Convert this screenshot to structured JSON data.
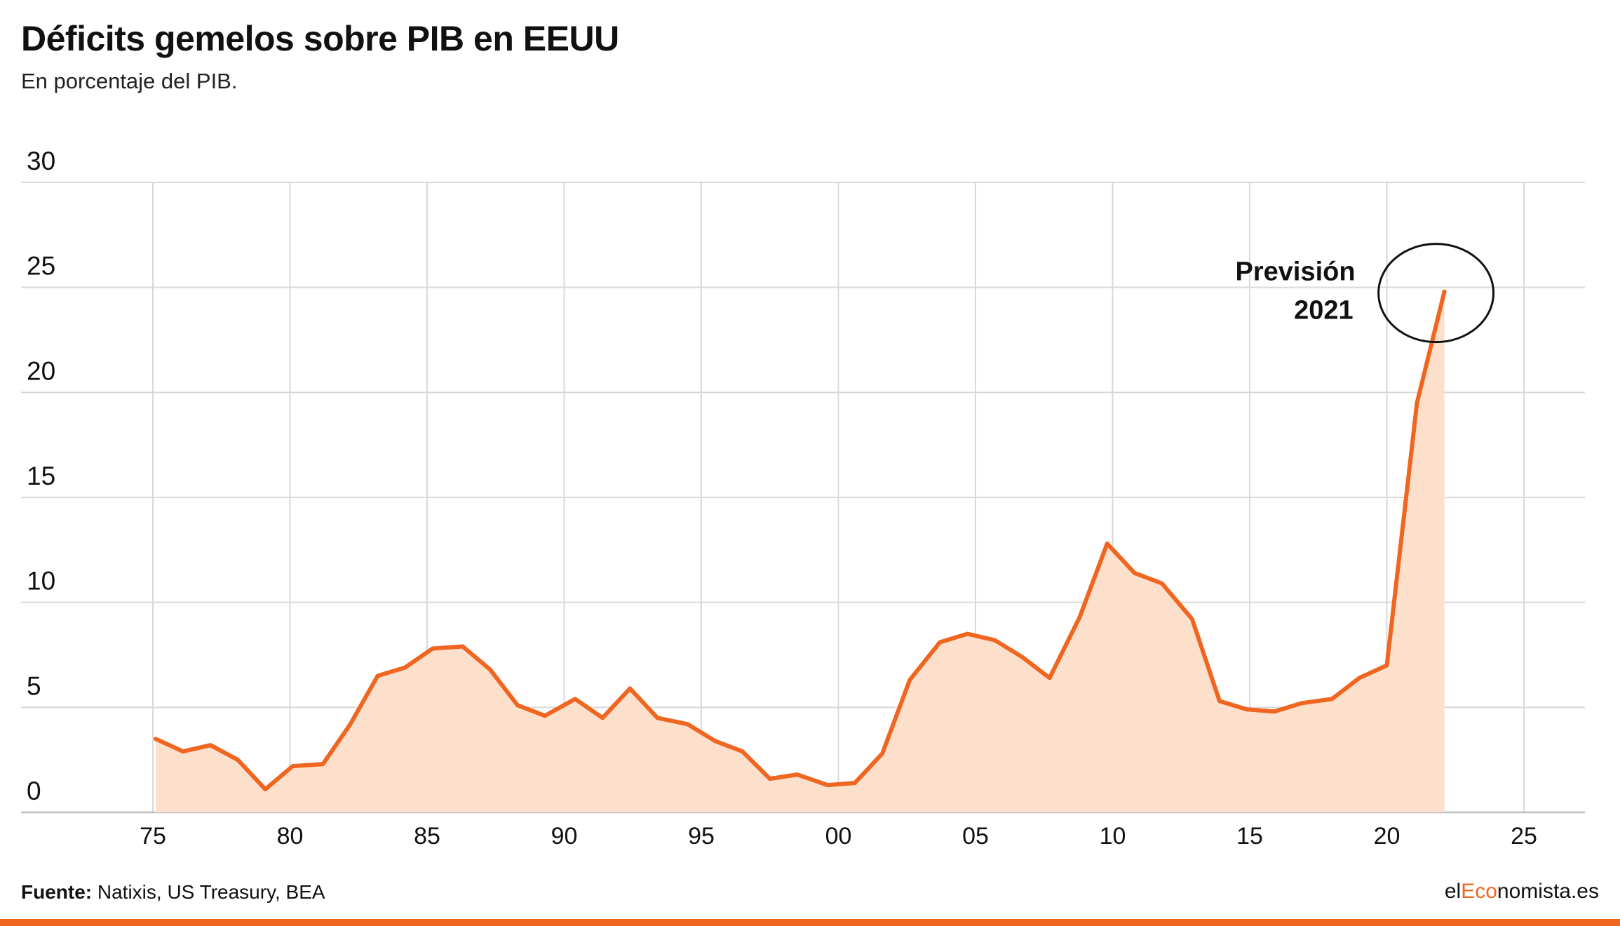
{
  "header": {
    "title": "Déficits gemelos sobre PIB en EEUU",
    "subtitle": "En porcentaje del PIB."
  },
  "footer": {
    "source_label": "Fuente:",
    "source_text": "Natixis, US Treasury, BEA",
    "brand_prefix": "el",
    "brand_accent": "Eco",
    "brand_suffix": "nomista.es"
  },
  "colors": {
    "line": "#f0651f",
    "area": "#fde0cc",
    "grid": "#d9d9d9",
    "accent": "#f0651f"
  },
  "chart_data": {
    "type": "area",
    "ylim": [
      0,
      30
    ],
    "xlim": [
      1975,
      2025
    ],
    "yticks": [
      0,
      5,
      10,
      15,
      20,
      25,
      30
    ],
    "ytick_labels": [
      "0",
      "5",
      "10",
      "15",
      "20",
      "25",
      "30"
    ],
    "xticks": [
      1975,
      1980,
      1985,
      1990,
      1995,
      2000,
      2005,
      2010,
      2015,
      2020,
      2025
    ],
    "xtick_labels": [
      "75",
      "80",
      "85",
      "90",
      "95",
      "00",
      "05",
      "10",
      "15",
      "20",
      "25"
    ],
    "grid": true,
    "series": [
      {
        "x": [
          1975.1,
          1976.1,
          1977.1,
          1978.1,
          1979.1,
          1980.1,
          1981.2,
          1982.2,
          1983.2,
          1984.2,
          1985.2,
          1986.3,
          1987.3,
          1988.3,
          1989.3,
          1990.4,
          1991.4,
          1992.4,
          1993.4,
          1994.5,
          1995.5,
          1996.5,
          1997.5,
          1998.5,
          1999.6,
          2000.6,
          2001.6,
          2002.6,
          2003.7,
          2004.7,
          2005.7,
          2006.7,
          2007.7,
          2008.8,
          2009.8,
          2010.8,
          2011.8,
          2012.9,
          2013.9,
          2014.9,
          2015.9,
          2016.9,
          2018.0,
          2019.0,
          2020.0,
          2021.1,
          2022.1
        ],
        "y": [
          3.5,
          2.9,
          3.2,
          2.5,
          1.1,
          2.2,
          2.3,
          4.2,
          6.5,
          6.9,
          7.8,
          7.9,
          6.8,
          5.1,
          4.6,
          5.4,
          4.5,
          5.9,
          4.5,
          4.2,
          3.4,
          2.9,
          1.6,
          1.8,
          1.3,
          1.4,
          2.8,
          6.3,
          8.1,
          8.5,
          8.2,
          7.4,
          6.4,
          9.3,
          12.8,
          11.4,
          10.9,
          9.2,
          5.3,
          4.9,
          4.8,
          5.2,
          5.4,
          6.4,
          7.0,
          19.5,
          24.8
        ]
      }
    ],
    "annotations": [
      {
        "line1": "Previsión",
        "line2": "2021",
        "x": 2022.1,
        "y": 24.8
      }
    ]
  }
}
